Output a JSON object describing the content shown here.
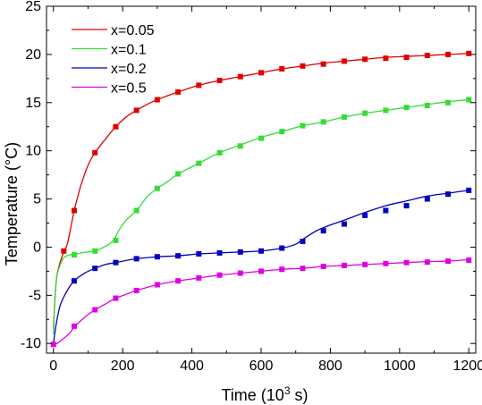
{
  "chart_data": {
    "type": "line",
    "xlabel_parts": [
      "Time (10",
      "3",
      " s)"
    ],
    "ylabel": "Temperature (°C)",
    "xlim": [
      -20,
      1220
    ],
    "ylim": [
      -11,
      25
    ],
    "xticks": [
      0,
      200,
      400,
      600,
      800,
      1000,
      1200
    ],
    "yticks": [
      -10,
      -5,
      0,
      5,
      10,
      15,
      20,
      25
    ],
    "grid": false,
    "legend_position": "top-left",
    "series": [
      {
        "name": "x=0.05",
        "color": "#e00000",
        "curve": [
          [
            0,
            -8.5
          ],
          [
            5,
            -5
          ],
          [
            10,
            -3
          ],
          [
            20,
            -1.5
          ],
          [
            30,
            -0.5
          ],
          [
            40,
            0.3
          ],
          [
            50,
            2
          ],
          [
            60,
            3.8
          ],
          [
            70,
            5.2
          ],
          [
            80,
            6.5
          ],
          [
            100,
            8.5
          ],
          [
            120,
            9.8
          ],
          [
            150,
            11.2
          ],
          [
            180,
            12.5
          ],
          [
            210,
            13.5
          ],
          [
            240,
            14.2
          ],
          [
            270,
            14.8
          ],
          [
            300,
            15.3
          ],
          [
            360,
            16.1
          ],
          [
            420,
            16.8
          ],
          [
            480,
            17.3
          ],
          [
            540,
            17.7
          ],
          [
            600,
            18.1
          ],
          [
            660,
            18.5
          ],
          [
            720,
            18.8
          ],
          [
            780,
            19.1
          ],
          [
            840,
            19.3
          ],
          [
            900,
            19.5
          ],
          [
            960,
            19.7
          ],
          [
            1020,
            19.8
          ],
          [
            1080,
            19.9
          ],
          [
            1140,
            20
          ],
          [
            1200,
            20.1
          ]
        ],
        "markers": [
          [
            30,
            -0.4
          ],
          [
            60,
            3.8
          ],
          [
            120,
            9.8
          ],
          [
            180,
            12.5
          ],
          [
            240,
            14.2
          ],
          [
            300,
            15.3
          ],
          [
            360,
            16.1
          ],
          [
            420,
            16.8
          ],
          [
            480,
            17.3
          ],
          [
            540,
            17.7
          ],
          [
            600,
            18.1
          ],
          [
            660,
            18.5
          ],
          [
            720,
            18.8
          ],
          [
            780,
            19.0
          ],
          [
            840,
            19.3
          ],
          [
            900,
            19.5
          ],
          [
            960,
            19.6
          ],
          [
            1020,
            19.7
          ],
          [
            1080,
            19.9
          ],
          [
            1140,
            20.0
          ],
          [
            1200,
            20.1
          ]
        ]
      },
      {
        "name": "x=0.1",
        "color": "#33dd33",
        "curve": [
          [
            0,
            -9
          ],
          [
            5,
            -5
          ],
          [
            10,
            -3
          ],
          [
            20,
            -1.8
          ],
          [
            30,
            -1.1
          ],
          [
            45,
            -0.8
          ],
          [
            60,
            -0.8
          ],
          [
            80,
            -0.6
          ],
          [
            100,
            -0.5
          ],
          [
            120,
            -0.4
          ],
          [
            140,
            -0.1
          ],
          [
            160,
            0.3
          ],
          [
            175,
            0.8
          ],
          [
            190,
            1.8
          ],
          [
            210,
            2.8
          ],
          [
            240,
            3.8
          ],
          [
            270,
            5.2
          ],
          [
            300,
            6.1
          ],
          [
            330,
            6.8
          ],
          [
            360,
            7.6
          ],
          [
            420,
            8.7
          ],
          [
            480,
            9.8
          ],
          [
            540,
            10.6
          ],
          [
            600,
            11.4
          ],
          [
            660,
            12
          ],
          [
            720,
            12.6
          ],
          [
            780,
            13
          ],
          [
            840,
            13.5
          ],
          [
            900,
            13.9
          ],
          [
            960,
            14.2
          ],
          [
            1020,
            14.5
          ],
          [
            1080,
            14.8
          ],
          [
            1140,
            15.1
          ],
          [
            1200,
            15.3
          ]
        ],
        "markers": [
          [
            60,
            -0.8
          ],
          [
            120,
            -0.4
          ],
          [
            180,
            0.7
          ],
          [
            240,
            3.8
          ],
          [
            300,
            6.1
          ],
          [
            360,
            7.6
          ],
          [
            420,
            8.7
          ],
          [
            480,
            9.8
          ],
          [
            540,
            10.5
          ],
          [
            600,
            11.3
          ],
          [
            660,
            12.0
          ],
          [
            720,
            12.6
          ],
          [
            780,
            13.0
          ],
          [
            840,
            13.5
          ],
          [
            900,
            13.9
          ],
          [
            960,
            14.2
          ],
          [
            1020,
            14.5
          ],
          [
            1080,
            14.7
          ],
          [
            1140,
            15.0
          ],
          [
            1200,
            15.3
          ]
        ]
      },
      {
        "name": "x=0.2",
        "color": "#0000c0",
        "curve": [
          [
            0,
            -10
          ],
          [
            8,
            -8
          ],
          [
            20,
            -6
          ],
          [
            40,
            -4.5
          ],
          [
            60,
            -3.5
          ],
          [
            90,
            -2.7
          ],
          [
            120,
            -2.2
          ],
          [
            150,
            -1.8
          ],
          [
            180,
            -1.6
          ],
          [
            240,
            -1.2
          ],
          [
            300,
            -1
          ],
          [
            360,
            -0.9
          ],
          [
            420,
            -0.7
          ],
          [
            480,
            -0.6
          ],
          [
            540,
            -0.5
          ],
          [
            600,
            -0.4
          ],
          [
            660,
            -0.1
          ],
          [
            700,
            0.3
          ],
          [
            720,
            0.8
          ],
          [
            760,
            1.7
          ],
          [
            800,
            2.3
          ],
          [
            840,
            2.8
          ],
          [
            900,
            3.6
          ],
          [
            960,
            4.3
          ],
          [
            1020,
            4.8
          ],
          [
            1080,
            5.3
          ],
          [
            1140,
            5.6
          ],
          [
            1200,
            5.9
          ]
        ],
        "markers": [
          [
            60,
            -3.5
          ],
          [
            120,
            -2.2
          ],
          [
            180,
            -1.6
          ],
          [
            240,
            -1.2
          ],
          [
            300,
            -1.0
          ],
          [
            360,
            -0.9
          ],
          [
            420,
            -0.7
          ],
          [
            480,
            -0.6
          ],
          [
            540,
            -0.5
          ],
          [
            600,
            -0.4
          ],
          [
            660,
            -0.1
          ],
          [
            720,
            0.6
          ],
          [
            780,
            1.7
          ],
          [
            840,
            2.4
          ],
          [
            900,
            3.3
          ],
          [
            960,
            3.8
          ],
          [
            1020,
            4.3
          ],
          [
            1080,
            5.0
          ],
          [
            1140,
            5.5
          ],
          [
            1200,
            5.9
          ]
        ]
      },
      {
        "name": "x=0.5",
        "color": "#e000e0",
        "curve": [
          [
            0,
            -10
          ],
          [
            10,
            -10
          ],
          [
            25,
            -9.6
          ],
          [
            45,
            -9
          ],
          [
            60,
            -8.3
          ],
          [
            80,
            -7.6
          ],
          [
            100,
            -7
          ],
          [
            120,
            -6.5
          ],
          [
            150,
            -5.9
          ],
          [
            180,
            -5.3
          ],
          [
            210,
            -4.9
          ],
          [
            240,
            -4.5
          ],
          [
            300,
            -3.9
          ],
          [
            360,
            -3.5
          ],
          [
            420,
            -3.2
          ],
          [
            480,
            -2.9
          ],
          [
            540,
            -2.7
          ],
          [
            600,
            -2.5
          ],
          [
            660,
            -2.3
          ],
          [
            720,
            -2.2
          ],
          [
            780,
            -2
          ],
          [
            840,
            -1.9
          ],
          [
            900,
            -1.8
          ],
          [
            960,
            -1.7
          ],
          [
            1020,
            -1.6
          ],
          [
            1080,
            -1.5
          ],
          [
            1140,
            -1.45
          ],
          [
            1200,
            -1.3
          ]
        ],
        "markers": [
          [
            0,
            -10.1
          ],
          [
            60,
            -8.2
          ],
          [
            120,
            -6.5
          ],
          [
            180,
            -5.3
          ],
          [
            240,
            -4.5
          ],
          [
            300,
            -3.9
          ],
          [
            360,
            -3.5
          ],
          [
            420,
            -3.2
          ],
          [
            480,
            -2.9
          ],
          [
            540,
            -2.7
          ],
          [
            600,
            -2.5
          ],
          [
            660,
            -2.3
          ],
          [
            720,
            -2.2
          ],
          [
            780,
            -2.0
          ],
          [
            840,
            -1.9
          ],
          [
            900,
            -1.8
          ],
          [
            960,
            -1.7
          ],
          [
            1020,
            -1.6
          ],
          [
            1080,
            -1.55
          ],
          [
            1140,
            -1.45
          ],
          [
            1200,
            -1.35
          ]
        ]
      }
    ]
  }
}
